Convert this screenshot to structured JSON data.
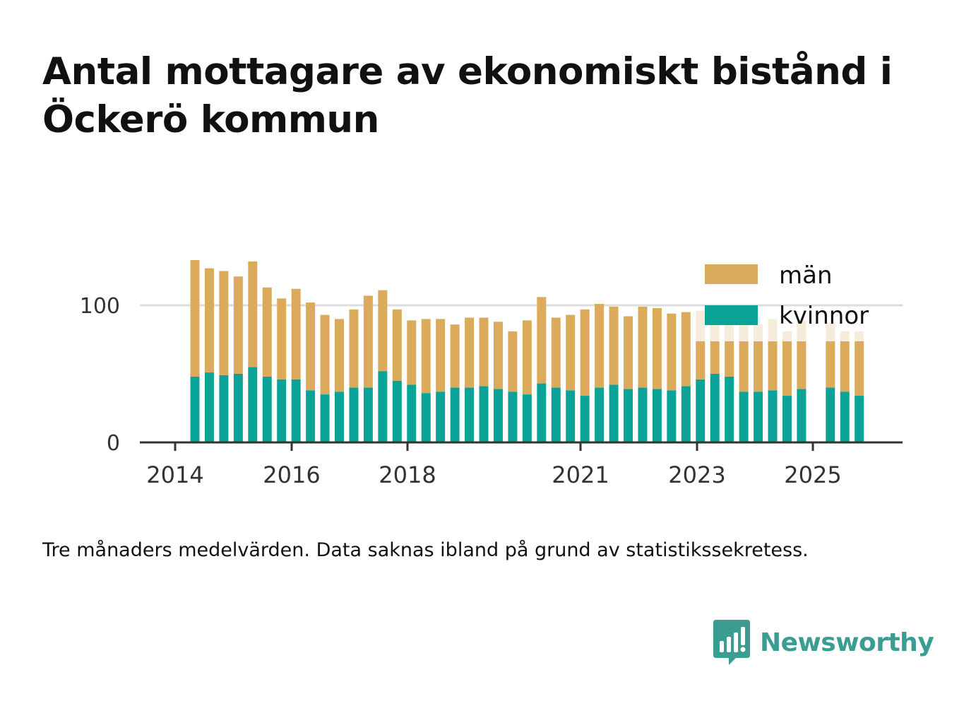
{
  "title": "Antal mottagare av ekonomiskt bistånd i Öckerö kommun",
  "footnote": "Tre månaders medelvärden. Data saknas ibland på grund av statistikssekretess.",
  "brand": {
    "name": "Newsworthy",
    "icon": "bar-chart-speech-bubble-icon",
    "color": "#3b9c92"
  },
  "colors": {
    "women": "#0ba398",
    "men": "#dbab5b",
    "men_faded": "#f6ecdb",
    "axis": "#333333",
    "grid": "#dddddd"
  },
  "chart_data": {
    "type": "bar",
    "stacked": true,
    "x": [
      "2014-Q2",
      "2014-Q3",
      "2014-Q4",
      "2015-Q1",
      "2015-Q2",
      "2015-Q3",
      "2015-Q4",
      "2016-Q1",
      "2016-Q2",
      "2016-Q3",
      "2016-Q4",
      "2017-Q1",
      "2017-Q2",
      "2017-Q3",
      "2017-Q4",
      "2018-Q1",
      "2018-Q2",
      "2018-Q3",
      "2018-Q4",
      "2019-Q1",
      "2019-Q2",
      "2019-Q3",
      "2019-Q4",
      "2020-Q1",
      "2020-Q2",
      "2020-Q3",
      "2020-Q4",
      "2021-Q1",
      "2021-Q2",
      "2021-Q3",
      "2021-Q4",
      "2022-Q1",
      "2022-Q2",
      "2022-Q3",
      "2022-Q4",
      "2023-Q1",
      "2023-Q2",
      "2023-Q3",
      "2023-Q4",
      "2024-Q1",
      "2024-Q2",
      "2024-Q3",
      "2024-Q4",
      "2025-Q1",
      "2025-Q2",
      "2025-Q3",
      "2025-Q4"
    ],
    "series": [
      {
        "name": "kvinnor",
        "values": [
          48,
          51,
          49,
          50,
          55,
          48,
          46,
          46,
          38,
          35,
          37,
          40,
          40,
          52,
          45,
          42,
          36,
          37,
          40,
          40,
          41,
          39,
          37,
          35,
          43,
          40,
          38,
          34,
          40,
          42,
          39,
          40,
          39,
          38,
          41,
          46,
          50,
          48,
          37,
          37,
          38,
          34,
          39,
          null,
          40,
          37,
          34
        ]
      },
      {
        "name": "män",
        "values": [
          85,
          76,
          76,
          71,
          77,
          65,
          59,
          66,
          64,
          58,
          53,
          57,
          67,
          59,
          52,
          47,
          54,
          53,
          46,
          51,
          50,
          49,
          44,
          54,
          63,
          51,
          55,
          63,
          61,
          57,
          53,
          59,
          59,
          56,
          54,
          50,
          47,
          48,
          50,
          49,
          52,
          47,
          50,
          null,
          47,
          44,
          47
        ]
      }
    ],
    "x_ticks": [
      "2014",
      "2016",
      "2018",
      "2021",
      "2023",
      "2025"
    ],
    "y_ticks": [
      0,
      100
    ],
    "ylim": [
      0,
      135
    ],
    "grid": true,
    "legend_position": "top-right"
  }
}
